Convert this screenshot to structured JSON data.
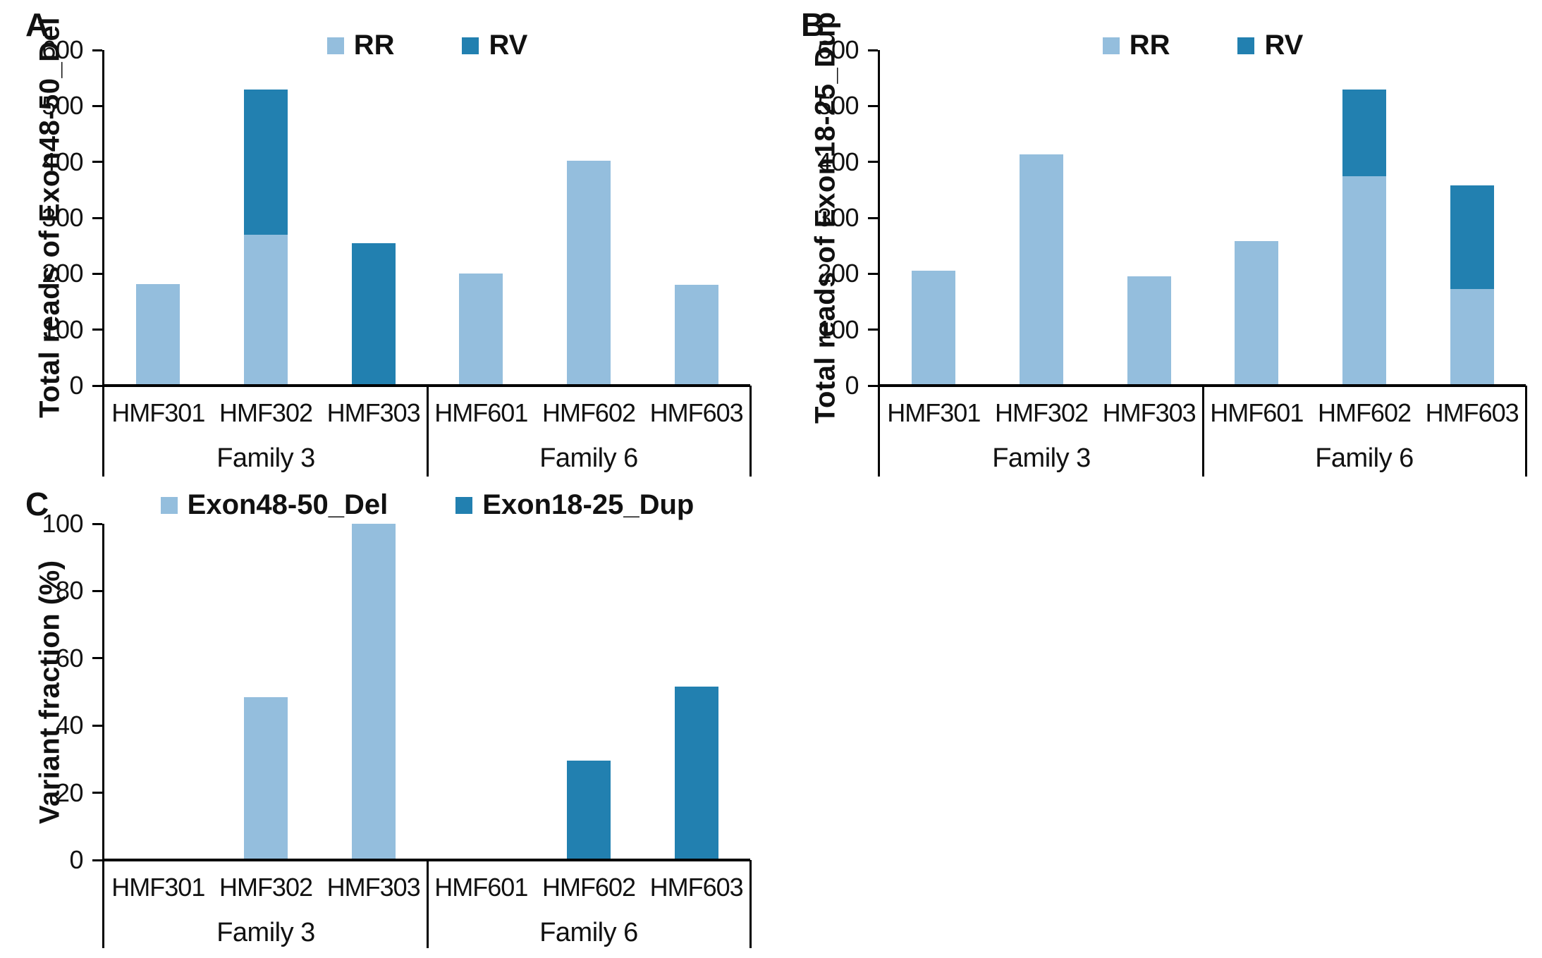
{
  "figure": {
    "background": "#ffffff",
    "text_color": "#111111",
    "axis_color": "#000000"
  },
  "colors": {
    "light_blue": "#94BEDD",
    "dark_blue": "#2280B0"
  },
  "chart_data": [
    {
      "type": "bar",
      "stacked": true,
      "panel": "A",
      "title": "",
      "xlabel": "",
      "ylabel": "Total reads of Exon48-50_Del",
      "ylim": [
        0,
        600
      ],
      "ytick_step": 100,
      "grid": false,
      "legend_position": "top",
      "categories": [
        "HMF301",
        "HMF302",
        "HMF303",
        "HMF601",
        "HMF602",
        "HMF603"
      ],
      "groups": [
        {
          "label": "Family 3",
          "span": 3
        },
        {
          "label": "Family 6",
          "span": 3
        }
      ],
      "series": [
        {
          "name": "RR",
          "color": "#94BEDD",
          "values": [
            182,
            270,
            0,
            200,
            402,
            180
          ]
        },
        {
          "name": "RV",
          "color": "#2280B0",
          "values": [
            0,
            260,
            255,
            0,
            0,
            0
          ]
        }
      ]
    },
    {
      "type": "bar",
      "stacked": true,
      "panel": "B",
      "title": "",
      "xlabel": "",
      "ylabel": "Total reads of Exon18-25_Dup",
      "ylim": [
        0,
        600
      ],
      "ytick_step": 100,
      "grid": false,
      "legend_position": "top",
      "categories": [
        "HMF301",
        "HMF302",
        "HMF303",
        "HMF601",
        "HMF602",
        "HMF603"
      ],
      "groups": [
        {
          "label": "Family 3",
          "span": 3
        },
        {
          "label": "Family 6",
          "span": 3
        }
      ],
      "series": [
        {
          "name": "RR",
          "color": "#94BEDD",
          "values": [
            205,
            413,
            195,
            258,
            374,
            173
          ]
        },
        {
          "name": "RV",
          "color": "#2280B0",
          "values": [
            0,
            0,
            0,
            0,
            156,
            185
          ]
        }
      ]
    },
    {
      "type": "bar",
      "stacked": false,
      "panel": "C",
      "title": "",
      "xlabel": "",
      "ylabel": "Variant fraction (%)",
      "ylim": [
        0,
        100
      ],
      "ytick_step": 20,
      "grid": false,
      "legend_position": "top",
      "categories": [
        "HMF301",
        "HMF302",
        "HMF303",
        "HMF601",
        "HMF602",
        "HMF603"
      ],
      "groups": [
        {
          "label": "Family 3",
          "span": 3
        },
        {
          "label": "Family 6",
          "span": 3
        }
      ],
      "series": [
        {
          "name": "Exon48-50_Del",
          "color": "#94BEDD",
          "values": [
            0,
            48.5,
            100,
            0,
            0,
            0
          ]
        },
        {
          "name": "Exon18-25_Dup",
          "color": "#2280B0",
          "values": [
            0,
            0,
            0,
            0,
            29.5,
            51.5
          ]
        }
      ]
    }
  ]
}
